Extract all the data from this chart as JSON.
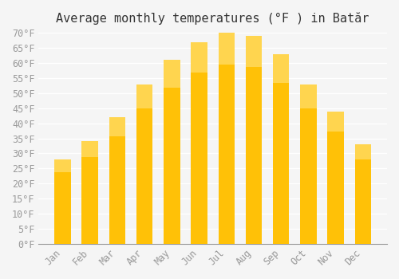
{
  "title": "Average monthly temperatures (°F ) in Batăr",
  "months": [
    "Jan",
    "Feb",
    "Mar",
    "Apr",
    "May",
    "Jun",
    "Jul",
    "Aug",
    "Sep",
    "Oct",
    "Nov",
    "Dec"
  ],
  "values": [
    28,
    34,
    42,
    53,
    61,
    67,
    70,
    69,
    63,
    53,
    44,
    33
  ],
  "bar_color_top": "#FFC107",
  "bar_color_bottom": "#FFB300",
  "bar_edge_color": "none",
  "background_color": "#f5f5f5",
  "grid_color": "#ffffff",
  "ylim": [
    0,
    70
  ],
  "yticks": [
    0,
    5,
    10,
    15,
    20,
    25,
    30,
    35,
    40,
    45,
    50,
    55,
    60,
    65,
    70
  ],
  "ytick_labels": [
    "0°F",
    "5°F",
    "10°F",
    "15°F",
    "20°F",
    "25°F",
    "30°F",
    "35°F",
    "40°F",
    "45°F",
    "50°F",
    "55°F",
    "60°F",
    "65°F",
    "70°F"
  ],
  "title_fontsize": 11,
  "tick_fontsize": 8.5,
  "tick_color": "#999999",
  "axis_color": "#999999"
}
